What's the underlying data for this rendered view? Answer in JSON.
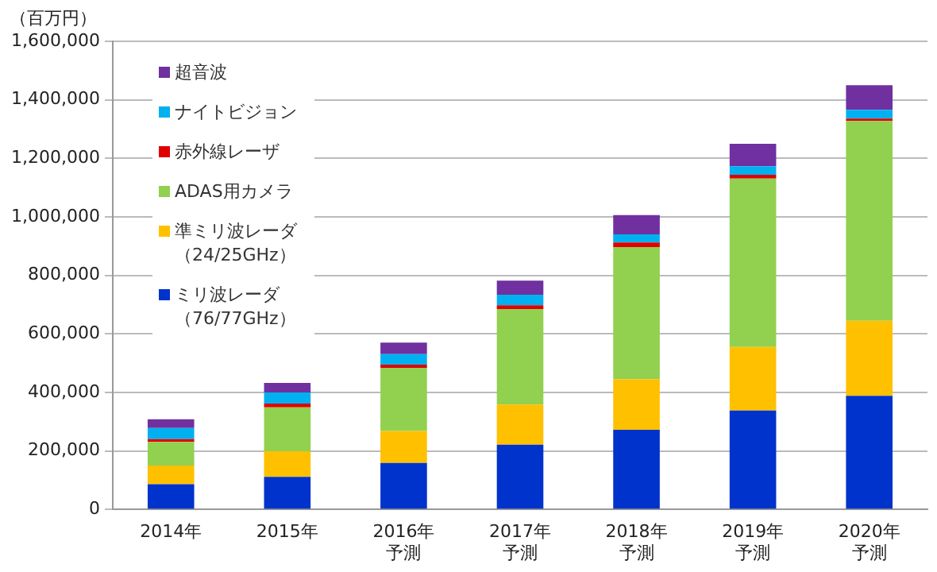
{
  "chart_data": {
    "type": "bar",
    "stacked": true,
    "ylabel": "（百万円）",
    "categories": [
      "2014年",
      "2015年",
      "2016年予測",
      "2017年予測",
      "2018年予測",
      "2019年予測",
      "2020年予測"
    ],
    "series": [
      {
        "name": "ミリ波レーダ（76/77GHz）",
        "color": "#0033cc",
        "values": [
          86000,
          111000,
          159000,
          221000,
          272000,
          338000,
          388000
        ]
      },
      {
        "name": "準ミリ波レーダ（24/25GHz）",
        "color": "#ffc000",
        "values": [
          64000,
          88000,
          109000,
          137000,
          173000,
          217000,
          257000
        ]
      },
      {
        "name": "ADAS用カメラ",
        "color": "#92d050",
        "values": [
          81000,
          150000,
          216000,
          327000,
          452000,
          576000,
          683000
        ]
      },
      {
        "name": "赤外線レーザ",
        "color": "#e00000",
        "values": [
          9000,
          13000,
          11000,
          13000,
          15000,
          13000,
          8000
        ]
      },
      {
        "name": "ナイトビジョン",
        "color": "#00b0f0",
        "values": [
          38000,
          38000,
          36000,
          36000,
          28000,
          29000,
          30000
        ]
      },
      {
        "name": "超音波",
        "color": "#7030a0",
        "values": [
          30000,
          32000,
          39000,
          48000,
          66000,
          77000,
          84000
        ]
      }
    ],
    "ylim": [
      0,
      1600000
    ],
    "yticks": [
      0,
      {
        "value": 200000,
        "label": "200,000"
      },
      {
        "value": 400000,
        "label": "400,000"
      },
      {
        "value": 600000,
        "label": "600,000"
      },
      {
        "value": 800000,
        "label": "800,000"
      },
      {
        "value": 1000000,
        "label": "1,000,000"
      },
      {
        "value": 1200000,
        "label": "1,200,000"
      },
      {
        "value": 1400000,
        "label": "1,400,000"
      },
      {
        "value": 1600000,
        "label": "1,600,000"
      }
    ],
    "grid": "y",
    "legend": "top left"
  }
}
